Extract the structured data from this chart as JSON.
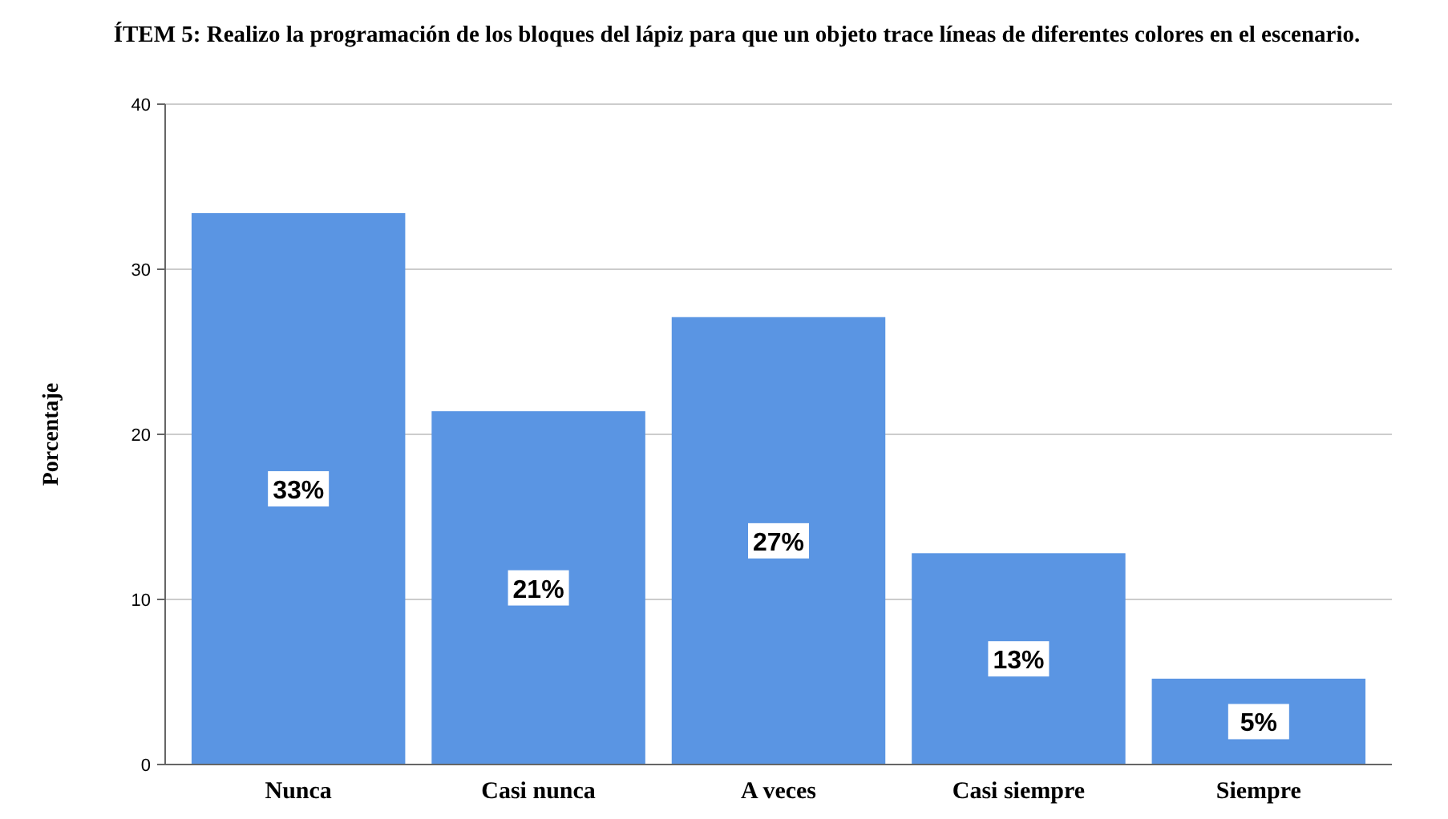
{
  "chart_data": {
    "type": "bar",
    "title": "ÍTEM 5: Realizo la programación de los bloques del lápiz para que un objeto trace líneas de diferentes colores en el escenario.",
    "ylabel": "Porcentaje",
    "categories": [
      "Nunca",
      "Casi nunca",
      "A veces",
      "Casi siempre",
      "Siempre"
    ],
    "values": [
      33.4,
      21.4,
      27.1,
      12.8,
      5.2
    ],
    "value_labels": [
      "33%",
      "21%",
      "27%",
      "13%",
      "5%"
    ],
    "color": "#5a95e3",
    "ylim": [
      0,
      40
    ],
    "yticks": [
      0,
      10,
      20,
      30,
      40
    ],
    "grid": "y"
  }
}
